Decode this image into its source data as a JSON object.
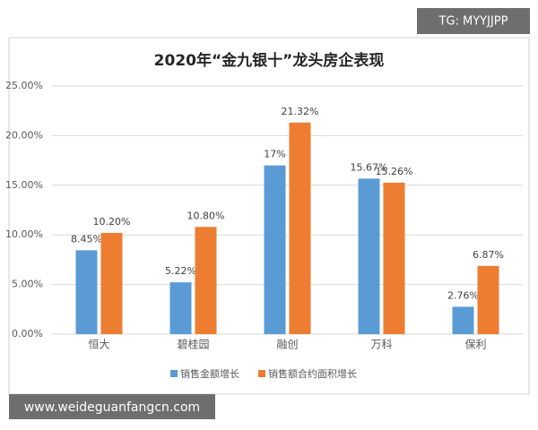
{
  "chart_data": {
    "type": "bar",
    "title": "2020年“金九银十”龙头房企表现",
    "categories": [
      "恒大",
      "碧桂园",
      "融创",
      "万科",
      "保利"
    ],
    "series": [
      {
        "name": "销售金额增长",
        "color": "#5b9bd5",
        "values": [
          8.45,
          5.22,
          17,
          15.67,
          2.76
        ],
        "value_labels": [
          "8.45%",
          "5.22%",
          "17%",
          "15.67%",
          "2.76%"
        ]
      },
      {
        "name": "销售额合约面积增长",
        "color": "#ed7d31",
        "values": [
          10.2,
          10.8,
          21.32,
          15.26,
          6.87
        ],
        "value_labels": [
          "10.20%",
          "10.80%",
          "21.32%",
          "15.26%",
          "6.87%"
        ]
      }
    ],
    "ylim": [
      0,
      25
    ],
    "yticks": [
      {
        "value": 0,
        "label": "0.00%"
      },
      {
        "value": 5,
        "label": "5.00%"
      },
      {
        "value": 10,
        "label": "10.00%"
      },
      {
        "value": 15,
        "label": "15.00%"
      },
      {
        "value": 20,
        "label": "20.00%"
      },
      {
        "value": 25,
        "label": "25.00%"
      }
    ],
    "grid": true,
    "legend": "bottom"
  },
  "watermarks": {
    "top": "TG: MYYJJPP",
    "bottom": "www.weideguanfangcn.com"
  }
}
